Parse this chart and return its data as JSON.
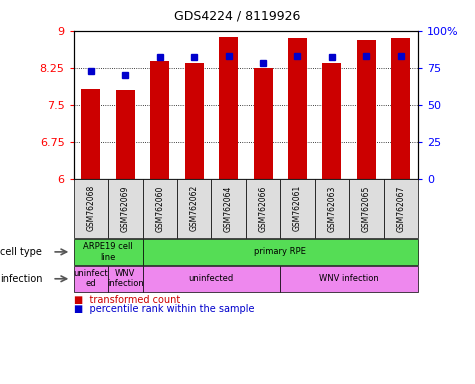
{
  "title": "GDS4224 / 8119926",
  "samples": [
    "GSM762068",
    "GSM762069",
    "GSM762060",
    "GSM762062",
    "GSM762064",
    "GSM762066",
    "GSM762061",
    "GSM762063",
    "GSM762065",
    "GSM762067"
  ],
  "transformed_counts": [
    7.82,
    7.8,
    8.38,
    8.35,
    8.88,
    8.25,
    8.85,
    8.35,
    8.82,
    8.85
  ],
  "percentile_ranks": [
    73,
    70,
    82,
    82,
    83,
    78,
    83,
    82,
    83,
    83
  ],
  "ymin": 6,
  "ymax": 9,
  "yticks": [
    6,
    6.75,
    7.5,
    8.25,
    9
  ],
  "right_yticks": [
    0,
    25,
    50,
    75,
    100
  ],
  "right_yticklabels": [
    "0",
    "25",
    "50",
    "75",
    "100%"
  ],
  "bar_color": "#cc0000",
  "dot_color": "#0000cc",
  "cell_type_groups": [
    {
      "label": "ARPE19 cell\nline",
      "start": 0,
      "end": 2,
      "color": "#55dd55"
    },
    {
      "label": "primary RPE",
      "start": 2,
      "end": 10,
      "color": "#55dd55"
    }
  ],
  "infection_groups": [
    {
      "label": "uninfect\ned",
      "start": 0,
      "end": 1,
      "color": "#ee88ee"
    },
    {
      "label": "WNV\ninfection",
      "start": 1,
      "end": 2,
      "color": "#ee88ee"
    },
    {
      "label": "uninfected",
      "start": 2,
      "end": 6,
      "color": "#ee88ee"
    },
    {
      "label": "WNV infection",
      "start": 6,
      "end": 10,
      "color": "#ee88ee"
    }
  ],
  "cell_type_label": "cell type",
  "infection_label": "infection",
  "legend_red": "transformed count",
  "legend_blue": "percentile rank within the sample",
  "legend_red_color": "#cc0000",
  "legend_blue_color": "#0000cc"
}
